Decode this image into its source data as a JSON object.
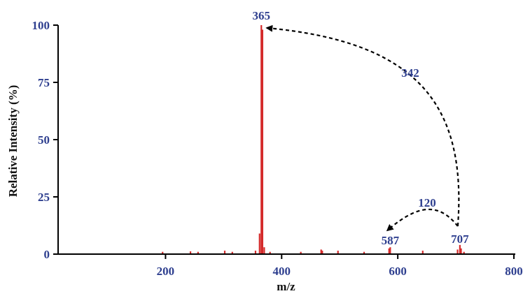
{
  "chart_data": {
    "type": "bar",
    "xlabel": "m/z",
    "ylabel": "Relative Intensity (%)",
    "xlim": [
      15,
      800
    ],
    "ylim": [
      0,
      100
    ],
    "x_ticks": [
      200,
      400,
      600,
      800
    ],
    "y_ticks": [
      0,
      25,
      50,
      75,
      100
    ],
    "series": [
      {
        "color": "#d42a2a",
        "points": [
          {
            "x": 195,
            "y": 1.0
          },
          {
            "x": 243,
            "y": 1.2
          },
          {
            "x": 256,
            "y": 1.0
          },
          {
            "x": 302,
            "y": 1.5
          },
          {
            "x": 315,
            "y": 1.0
          },
          {
            "x": 355,
            "y": 1.5
          },
          {
            "x": 362,
            "y": 9
          },
          {
            "x": 365,
            "y": 100
          },
          {
            "x": 367,
            "y": 98
          },
          {
            "x": 370,
            "y": 3
          },
          {
            "x": 380,
            "y": 1.0
          },
          {
            "x": 433,
            "y": 1.0
          },
          {
            "x": 468,
            "y": 2.0
          },
          {
            "x": 470,
            "y": 1.5
          },
          {
            "x": 497,
            "y": 1.5
          },
          {
            "x": 542,
            "y": 1.0
          },
          {
            "x": 585,
            "y": 2.5
          },
          {
            "x": 587,
            "y": 3.0
          },
          {
            "x": 643,
            "y": 1.5
          },
          {
            "x": 703,
            "y": 2.0
          },
          {
            "x": 707,
            "y": 4.0
          },
          {
            "x": 709,
            "y": 2.5
          },
          {
            "x": 714,
            "y": 1.0
          }
        ]
      }
    ],
    "peak_labels": [
      {
        "x": 365,
        "text": "365"
      },
      {
        "x": 587,
        "text": "587"
      },
      {
        "x": 707,
        "text": "707"
      }
    ],
    "loss_annotations": [
      {
        "from": 707,
        "to": 365,
        "text": "342"
      },
      {
        "from": 707,
        "to": 587,
        "text": "120"
      }
    ]
  }
}
